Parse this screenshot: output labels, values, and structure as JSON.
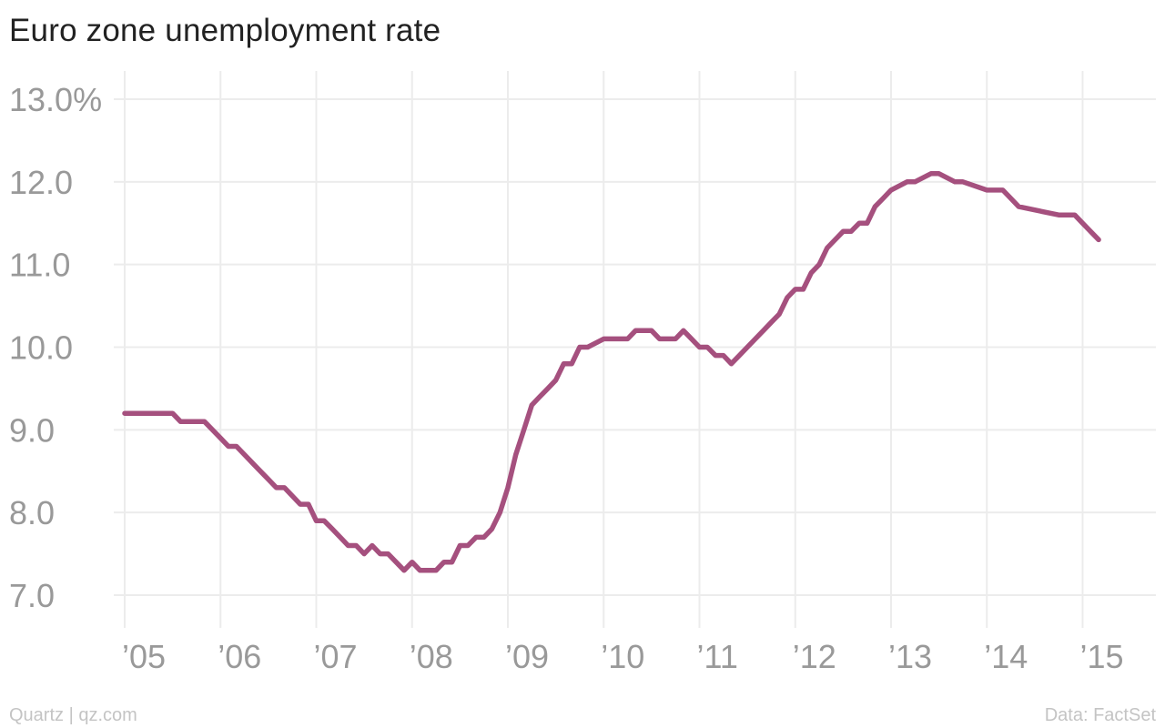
{
  "chart_data": {
    "type": "line",
    "title": "Euro zone unemployment rate",
    "xlabel": "",
    "ylabel": "",
    "ylim": [
      7.0,
      13.0
    ],
    "xlim": [
      2005.0,
      2015.5
    ],
    "y_ticks": [
      7.0,
      8.0,
      9.0,
      10.0,
      11.0,
      12.0,
      13.0
    ],
    "y_tick_labels": [
      "7.0",
      "8.0",
      "9.0",
      "10.0",
      "11.0",
      "12.0",
      "13.0%"
    ],
    "x_ticks": [
      2005,
      2006,
      2007,
      2008,
      2009,
      2010,
      2011,
      2012,
      2013,
      2014,
      2015
    ],
    "x_tick_labels": [
      "’05",
      "’06",
      "’07",
      "’08",
      "’09",
      "’10",
      "’11",
      "’12",
      "’13",
      "’14",
      "’15"
    ],
    "grid": true,
    "series": [
      {
        "color": "#a5507e",
        "x": [
          2005.0,
          2005.5,
          2005.583,
          2005.833,
          2006.0,
          2006.083,
          2006.167,
          2006.25,
          2006.333,
          2006.417,
          2006.5,
          2006.583,
          2006.667,
          2006.75,
          2006.833,
          2006.917,
          2007.0,
          2007.083,
          2007.167,
          2007.25,
          2007.333,
          2007.417,
          2007.5,
          2007.583,
          2007.667,
          2007.75,
          2007.833,
          2007.917,
          2008.0,
          2008.083,
          2008.25,
          2008.333,
          2008.417,
          2008.5,
          2008.583,
          2008.667,
          2008.75,
          2008.833,
          2008.917,
          2009.0,
          2009.083,
          2009.167,
          2009.25,
          2009.333,
          2009.417,
          2009.5,
          2009.583,
          2009.667,
          2009.75,
          2009.833,
          2010.0,
          2010.25,
          2010.333,
          2010.5,
          2010.583,
          2010.75,
          2010.833,
          2010.917,
          2011.0,
          2011.083,
          2011.167,
          2011.25,
          2011.333,
          2011.417,
          2011.5,
          2011.583,
          2011.667,
          2011.75,
          2011.833,
          2011.917,
          2012.0,
          2012.083,
          2012.167,
          2012.25,
          2012.333,
          2012.417,
          2012.5,
          2012.583,
          2012.667,
          2012.75,
          2012.833,
          2012.917,
          2013.0,
          2013.167,
          2013.25,
          2013.417,
          2013.5,
          2013.667,
          2013.75,
          2014.0,
          2014.167,
          2014.25,
          2014.333,
          2014.75,
          2014.833,
          2014.917,
          2015.0,
          2015.083,
          2015.167
        ],
        "y": [
          9.2,
          9.2,
          9.1,
          9.1,
          8.9,
          8.8,
          8.8,
          8.7,
          8.6,
          8.5,
          8.4,
          8.3,
          8.3,
          8.2,
          8.1,
          8.1,
          7.9,
          7.9,
          7.8,
          7.7,
          7.6,
          7.6,
          7.5,
          7.6,
          7.5,
          7.5,
          7.4,
          7.3,
          7.4,
          7.3,
          7.3,
          7.4,
          7.4,
          7.6,
          7.6,
          7.7,
          7.7,
          7.8,
          8.0,
          8.3,
          8.7,
          9.0,
          9.3,
          9.4,
          9.5,
          9.6,
          9.8,
          9.8,
          10.0,
          10.0,
          10.1,
          10.1,
          10.2,
          10.2,
          10.1,
          10.1,
          10.2,
          10.1,
          10.0,
          10.0,
          9.9,
          9.9,
          9.8,
          9.9,
          10.0,
          10.1,
          10.2,
          10.3,
          10.4,
          10.6,
          10.7,
          10.7,
          10.9,
          11.0,
          11.2,
          11.3,
          11.4,
          11.4,
          11.5,
          11.5,
          11.7,
          11.8,
          11.9,
          12.0,
          12.0,
          12.1,
          12.1,
          12.0,
          12.0,
          11.9,
          11.9,
          11.8,
          11.7,
          11.6,
          11.6,
          11.6,
          11.5,
          11.4,
          11.3
        ]
      }
    ]
  },
  "footer": {
    "source_left": "Quartz | qz.com",
    "source_right": "Data: FactSet"
  }
}
